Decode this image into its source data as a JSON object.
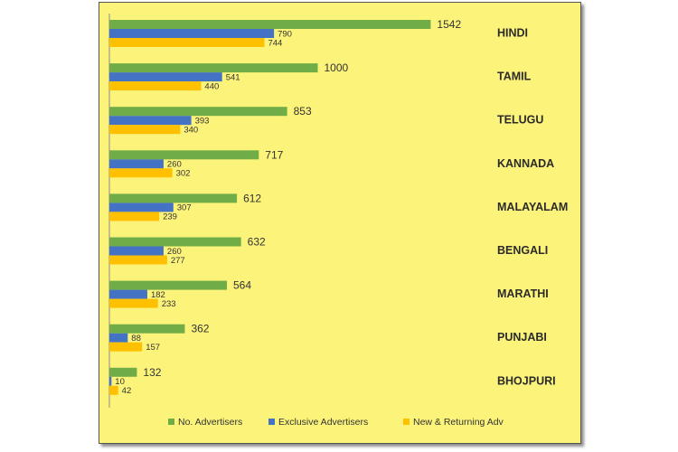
{
  "chart_data": {
    "type": "bar",
    "orientation": "horizontal",
    "title": "",
    "xlabel": "",
    "ylabel": "",
    "categories": [
      "HINDI",
      "TAMIL",
      "TELUGU",
      "KANNADA",
      "MALAYALAM",
      "BENGALI",
      "MARATHI",
      "PUNJABI",
      "BHOJPURI"
    ],
    "series": [
      {
        "name": "No. Advertisers",
        "color": "#70ad47",
        "values": [
          1542,
          1000,
          853,
          717,
          612,
          632,
          564,
          362,
          132
        ]
      },
      {
        "name": "Exclusive Advertisers",
        "color": "#4472c4",
        "values": [
          790,
          541,
          393,
          260,
          307,
          260,
          182,
          88,
          10
        ]
      },
      {
        "name": "New & Returning Adv",
        "color": "#ffc000",
        "values": [
          744,
          440,
          340,
          302,
          239,
          277,
          233,
          157,
          42
        ]
      }
    ],
    "xlim": [
      0,
      1600
    ],
    "grid": false,
    "legend": "bottom",
    "background": "#fbf37a"
  }
}
